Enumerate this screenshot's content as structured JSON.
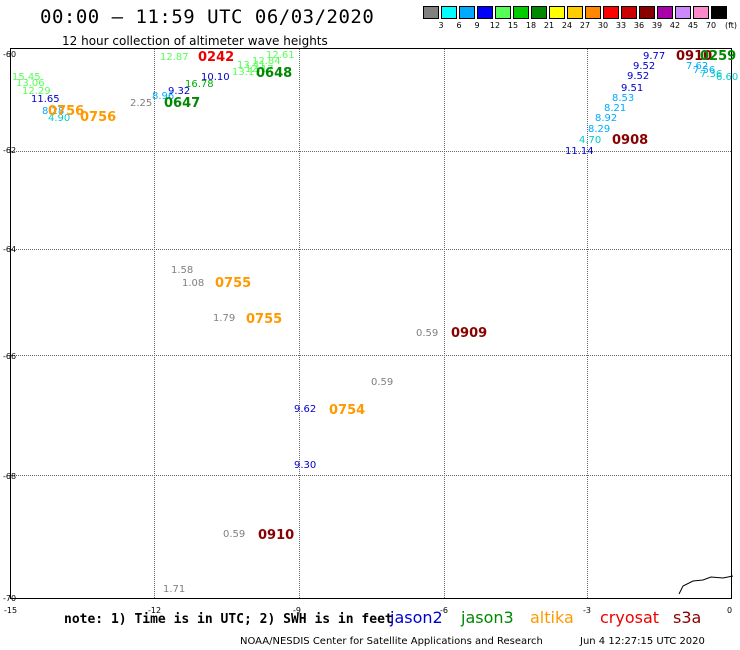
{
  "title": "00:00 – 11:59 UTC 06/03/2020",
  "subtitle": "12 hour collection of altimeter wave heights",
  "colorbar": {
    "colors": [
      "#808080",
      "#00ffff",
      "#00aaff",
      "#0000ff",
      "#55ff55",
      "#00cc00",
      "#008800",
      "#ffff00",
      "#ffcc00",
      "#ff8800",
      "#ff0000",
      "#cc0000",
      "#880000",
      "#aa00aa",
      "#cc88ff",
      "#ff88cc",
      "#000000"
    ],
    "labels": [
      "3",
      "6",
      "9",
      "12",
      "15",
      "18",
      "21",
      "24",
      "27",
      "30",
      "33",
      "36",
      "39",
      "42",
      "45",
      "70"
    ],
    "unit": "(ft)"
  },
  "axes": {
    "y_labels": [
      "-60",
      "-62",
      "-64",
      "-66",
      "-68",
      "-70"
    ],
    "x_labels": [
      "-15",
      "-12",
      "-9",
      "-6",
      "-3",
      "0"
    ]
  },
  "observations": [
    {
      "text": "12.87",
      "color": "#55ff55"
    },
    {
      "text": "12.61",
      "color": "#55ff55"
    },
    {
      "text": "13.41",
      "color": "#55ff55"
    },
    {
      "text": "12.84",
      "color": "#55ff55"
    },
    {
      "text": "13.17",
      "color": "#55ff55"
    },
    {
      "text": "12.17",
      "color": "#55ff55"
    },
    {
      "text": "16.78",
      "color": "#00aa00"
    },
    {
      "text": "10.10",
      "color": "#0000cc"
    },
    {
      "text": "9.32",
      "color": "#0000cc"
    },
    {
      "text": "8.96",
      "color": "#00aaff"
    },
    {
      "text": "2.25",
      "color": "#808080"
    },
    {
      "text": "15.45",
      "color": "#55ff55"
    },
    {
      "text": "13.06",
      "color": "#55ff55"
    },
    {
      "text": "12.29",
      "color": "#55ff55"
    },
    {
      "text": "11.65",
      "color": "#0000cc"
    },
    {
      "text": "8.28",
      "color": "#00aaff"
    },
    {
      "text": "4.90",
      "color": "#00cccc"
    },
    {
      "text": "1.58",
      "color": "#808080"
    },
    {
      "text": "1.08",
      "color": "#808080"
    },
    {
      "text": "1.79",
      "color": "#808080"
    },
    {
      "text": "0.59",
      "color": "#808080"
    },
    {
      "text": "0.59",
      "color": "#808080"
    },
    {
      "text": "9.62",
      "color": "#0000cc"
    },
    {
      "text": "9.30",
      "color": "#0000cc"
    },
    {
      "text": "0.59",
      "color": "#808080"
    },
    {
      "text": "1.71",
      "color": "#808080"
    },
    {
      "text": "9.77",
      "color": "#0000cc"
    },
    {
      "text": "9.52",
      "color": "#0000cc"
    },
    {
      "text": "9.52",
      "color": "#0000cc"
    },
    {
      "text": "9.51",
      "color": "#0000cc"
    },
    {
      "text": "8.53",
      "color": "#00aaff"
    },
    {
      "text": "8.21",
      "color": "#00aaff"
    },
    {
      "text": "8.92",
      "color": "#00aaff"
    },
    {
      "text": "8.29",
      "color": "#00aaff"
    },
    {
      "text": "4.70",
      "color": "#00cccc"
    },
    {
      "text": "11.14",
      "color": "#0000cc"
    },
    {
      "text": "7.62",
      "color": "#00aaff"
    },
    {
      "text": "7.56",
      "color": "#00aaff"
    },
    {
      "text": "7.36",
      "color": "#00cccc"
    },
    {
      "text": "6.60",
      "color": "#00cccc"
    }
  ],
  "times": [
    {
      "text": "0242",
      "color": "#ee0000"
    },
    {
      "text": "0648",
      "color": "#008800"
    },
    {
      "text": "0647",
      "color": "#008800"
    },
    {
      "text": "0756",
      "color": "#ff9900"
    },
    {
      "text": "0756",
      "color": "#ff9900"
    },
    {
      "text": "0755",
      "color": "#ff9900"
    },
    {
      "text": "0755",
      "color": "#ff9900"
    },
    {
      "text": "0909",
      "color": "#880000"
    },
    {
      "text": "0754",
      "color": "#ff9900"
    },
    {
      "text": "0910",
      "color": "#880000"
    },
    {
      "text": "0908",
      "color": "#880000"
    },
    {
      "text": "0910",
      "color": "#880000"
    },
    {
      "text": "0259",
      "color": "#008800"
    }
  ],
  "note": "note: 1) Time is in UTC; 2) SWH is in feet",
  "satellites": [
    {
      "name": "jason2",
      "color": "#0000cc"
    },
    {
      "name": "jason3",
      "color": "#008800"
    },
    {
      "name": "altika",
      "color": "#ff9900"
    },
    {
      "name": "cryosat",
      "color": "#ee0000"
    },
    {
      "name": "s3a",
      "color": "#880000"
    }
  ],
  "credit": "NOAA/NESDIS Center for Satellite Applications and Research",
  "timestamp": "Jun  4 12:27:15 UTC 2020"
}
